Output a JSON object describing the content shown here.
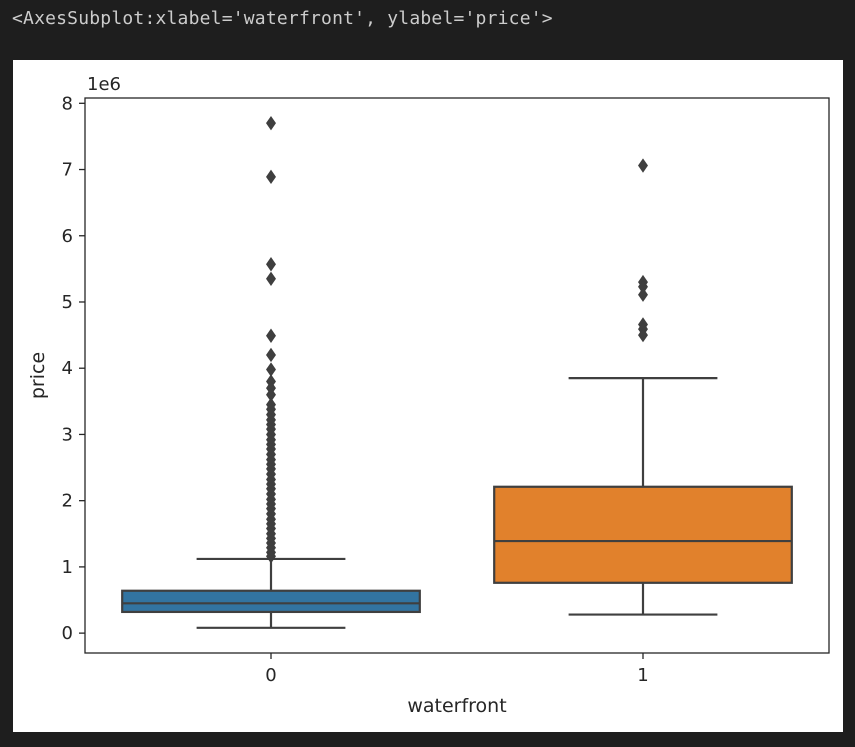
{
  "cell_output": {
    "repr": "<AxesSubplot:xlabel='waterfront', ylabel='price'>"
  },
  "chart_data": {
    "type": "box",
    "xlabel": "waterfront",
    "ylabel": "price",
    "offset_label": "1e6",
    "categories": [
      "0",
      "1"
    ],
    "ylim": [
      -0.3,
      8.08
    ],
    "yticks": [
      0,
      1,
      2,
      3,
      4,
      5,
      6,
      7,
      8
    ],
    "ytick_labels": [
      "0",
      "1",
      "2",
      "3",
      "4",
      "5",
      "6",
      "7",
      "8"
    ],
    "grid": false,
    "legend": "none",
    "boxes": [
      {
        "category": "0",
        "color": "#3274a1",
        "whisker_low": 0.08,
        "q1": 0.32,
        "median": 0.45,
        "q3": 0.64,
        "whisker_high": 1.12,
        "outliers": [
          7.7,
          6.89,
          5.57,
          5.35,
          4.49,
          4.2,
          3.98,
          3.8,
          3.7,
          3.6,
          3.45,
          3.38,
          3.3,
          3.22,
          3.15,
          3.08,
          3.0,
          2.92,
          2.85,
          2.78,
          2.7,
          2.62,
          2.55,
          2.48,
          2.4,
          2.32,
          2.25,
          2.18,
          2.1,
          2.02,
          1.95,
          1.88,
          1.8,
          1.72,
          1.65,
          1.58,
          1.5,
          1.43,
          1.36,
          1.29,
          1.22,
          1.16
        ]
      },
      {
        "category": "1",
        "color": "#e1812c",
        "whisker_low": 0.28,
        "q1": 0.76,
        "median": 1.39,
        "q3": 2.21,
        "whisker_high": 3.85,
        "outliers": [
          7.06,
          5.3,
          5.23,
          5.11,
          4.66,
          4.59,
          4.5
        ]
      }
    ]
  }
}
